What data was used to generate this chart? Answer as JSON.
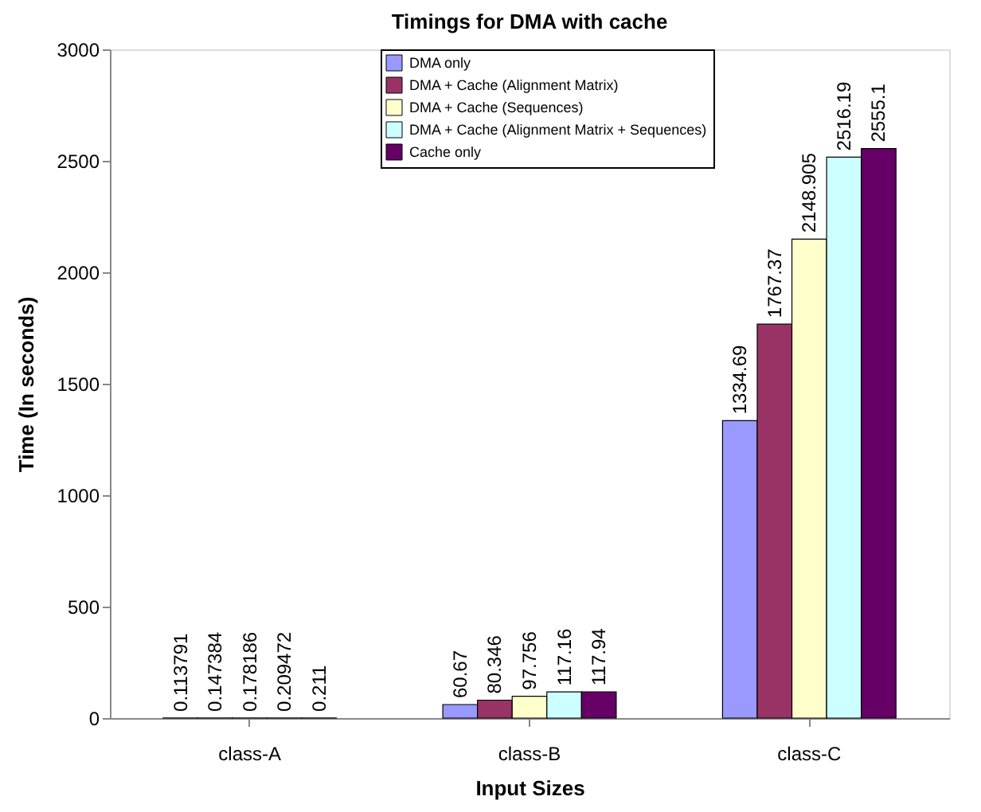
{
  "chart_data": {
    "type": "bar",
    "title": "Timings for DMA with cache",
    "xlabel": "Input Sizes",
    "ylabel": "Time (In seconds)",
    "categories": [
      "class-A",
      "class-B",
      "class-C"
    ],
    "series": [
      {
        "name": "DMA only",
        "color": "#9999ff",
        "values": [
          0.113791,
          60.67,
          1334.69
        ]
      },
      {
        "name": "DMA + Cache (Alignment Matrix)",
        "color": "#993366",
        "values": [
          0.147384,
          80.346,
          1767.37
        ]
      },
      {
        "name": "DMA + Cache (Sequences)",
        "color": "#ffffcc",
        "values": [
          0.178186,
          97.756,
          2148.905
        ]
      },
      {
        "name": "DMA + Cache (Alignment Matrix + Sequences)",
        "color": "#ccffff",
        "values": [
          0.209472,
          117.16,
          2516.19
        ]
      },
      {
        "name": "Cache only",
        "color": "#660066",
        "values": [
          0.211,
          117.94,
          2555.1
        ]
      }
    ],
    "ylim": [
      0,
      3000
    ],
    "yticks": [
      0,
      500,
      1000,
      1500,
      2000,
      2500,
      3000
    ],
    "grid": false,
    "legend": "top",
    "data_labels": true
  }
}
